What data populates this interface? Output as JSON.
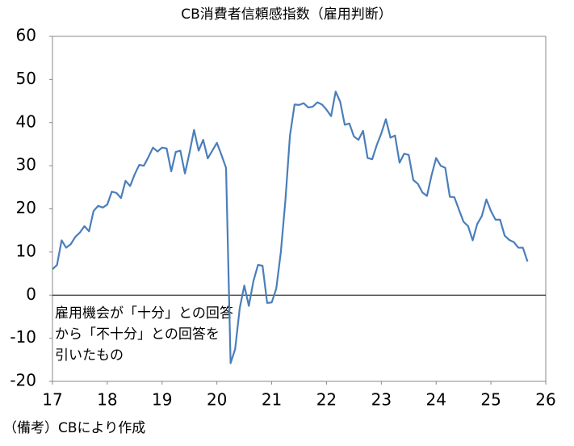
{
  "chart_data": {
    "type": "line",
    "title": "CB消費者信頼感指数（雇用判断）",
    "x": [
      17,
      17.083,
      17.167,
      17.25,
      17.333,
      17.417,
      17.5,
      17.583,
      17.667,
      17.75,
      17.833,
      17.917,
      18,
      18.083,
      18.167,
      18.25,
      18.333,
      18.417,
      18.5,
      18.583,
      18.667,
      18.75,
      18.833,
      18.917,
      19,
      19.083,
      19.167,
      19.25,
      19.333,
      19.417,
      19.5,
      19.583,
      19.667,
      19.75,
      19.833,
      19.917,
      20,
      20.083,
      20.167,
      20.25,
      20.333,
      20.417,
      20.5,
      20.583,
      20.667,
      20.75,
      20.833,
      20.917,
      21,
      21.083,
      21.167,
      21.25,
      21.333,
      21.417,
      21.5,
      21.583,
      21.667,
      21.75,
      21.833,
      21.917,
      22,
      22.083,
      22.167,
      22.25,
      22.333,
      22.417,
      22.5,
      22.583,
      22.667,
      22.75,
      22.833,
      22.917,
      23,
      23.083,
      23.167,
      23.25,
      23.333,
      23.417,
      23.5,
      23.583,
      23.667,
      23.75,
      23.833,
      23.917,
      24,
      24.083,
      24.167,
      24.25,
      24.333,
      24.417,
      24.5,
      24.583,
      24.667,
      24.75,
      24.833,
      24.917,
      25,
      25.083,
      25.167,
      25.25,
      25.333,
      25.417,
      25.5,
      25.583,
      25.667
    ],
    "series": [
      {
        "color": "#4a7ebb",
        "values": [
          6,
          7,
          12.7,
          11,
          11.8,
          13.5,
          14.5,
          16,
          14.8,
          19.5,
          20.7,
          20.3,
          21,
          24,
          23.7,
          22.5,
          26.5,
          25.3,
          28,
          30.2,
          30,
          32,
          34.2,
          33.3,
          34.2,
          34,
          28.7,
          33.2,
          33.5,
          28.2,
          33,
          38.3,
          33.5,
          36,
          31.7,
          33.5,
          35.3,
          32.5,
          29.5,
          -15.8,
          -12.5,
          -3,
          2.2,
          -2.5,
          3.3,
          7,
          6.8,
          -1.8,
          -1.7,
          1.5,
          10,
          22,
          37,
          44.2,
          44.1,
          44.5,
          43.5,
          43.7,
          44.7,
          44.2,
          43,
          41.5,
          47.2,
          44.8,
          39.5,
          39.8,
          36.8,
          36,
          38.1,
          31.8,
          31.5,
          34.8,
          37.5,
          40.8,
          36.5,
          37,
          30.7,
          32.8,
          32.5,
          26.7,
          25.8,
          23.8,
          23,
          27.8,
          31.8,
          30,
          29.5,
          22.8,
          22.7,
          19.8,
          17,
          16,
          12.7,
          16.5,
          18.3,
          22.2,
          19.5,
          17.5,
          17.5,
          13.8,
          12.8,
          12.3,
          11,
          11,
          7.8
        ]
      }
    ],
    "xlim": [
      17,
      26
    ],
    "xticks": [
      17,
      18,
      19,
      20,
      21,
      22,
      23,
      24,
      25,
      26
    ],
    "ylim": [
      -20,
      60
    ],
    "yticks": [
      -20,
      -10,
      0,
      10,
      20,
      30,
      40,
      50,
      60
    ],
    "annotation": [
      "雇用機会が「十分」との回答",
      "から「不十分」との回答を",
      "引いたもの"
    ],
    "note": "（備考）CBにより作成"
  }
}
